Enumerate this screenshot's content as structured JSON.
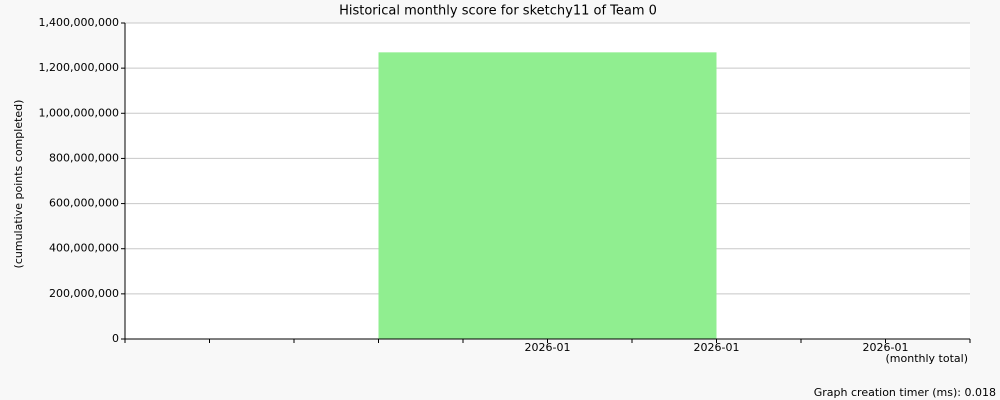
{
  "chart_data": {
    "type": "bar",
    "title": "Historical monthly score for sketchy11 of Team 0",
    "y_label": "(cumulative points completed)",
    "x_label": "(monthly total)",
    "footer": "Graph creation timer (ms): 0.018",
    "categories": [
      "2026-01",
      "2026-01",
      "2026-01"
    ],
    "values": [
      1270000000,
      0,
      0
    ],
    "color": "#90ee90",
    "ylim": [
      0,
      1400000000
    ],
    "yticks": [
      0,
      {
        "value": 200000000,
        "label": "200,000,000"
      },
      {
        "value": 400000000,
        "label": "400,000,000"
      },
      {
        "value": 600000000,
        "label": "600,000,000"
      },
      {
        "value": 800000000,
        "label": "800,000,000"
      },
      {
        "value": 1000000000,
        "label": "1,000,000,000"
      },
      {
        "value": 1200000000,
        "label": "1,200,000,000"
      },
      {
        "value": 1400000000,
        "label": "1,400,000,000"
      }
    ],
    "grid": true
  }
}
